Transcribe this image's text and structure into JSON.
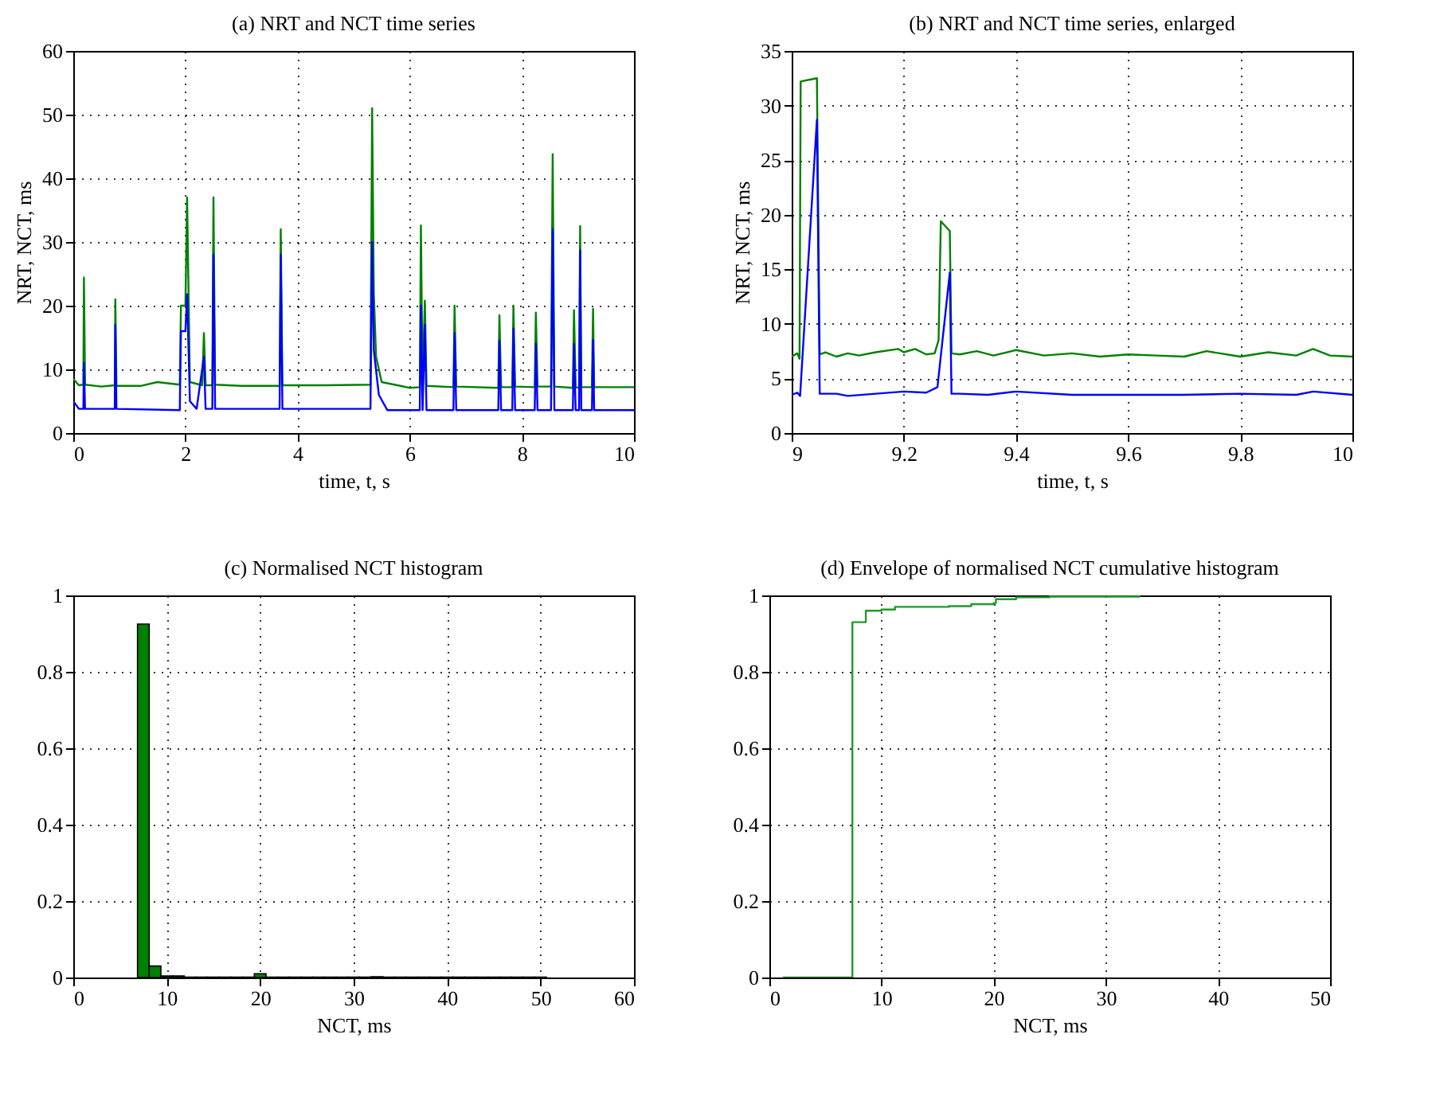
{
  "chart_data": [
    {
      "type": "line",
      "title": "(a)  NRT and NCT time series",
      "xlabel": "time, t, s",
      "ylabel": "NRT, NCT, ms",
      "xlim": [
        0,
        10
      ],
      "xticks": [
        0,
        2,
        4,
        6,
        8,
        10
      ],
      "ylim": [
        0,
        60
      ],
      "yticks": [
        0,
        10,
        20,
        30,
        40,
        50,
        60
      ],
      "grid": true,
      "series": [
        {
          "color": "#008000",
          "x": [
            0,
            0.1,
            0.18,
            0.19,
            0.21,
            0.5,
            0.74,
            0.75,
            0.77,
            1.2,
            1.5,
            1.9,
            1.92,
            2.0,
            2.03,
            2.08,
            2.3,
            2.33,
            2.36,
            2.48,
            2.5,
            2.53,
            3.0,
            3.68,
            3.7,
            3.73,
            4.5,
            5.3,
            5.33,
            5.36,
            5.4,
            5.5,
            6.0,
            6.18,
            6.2,
            6.23,
            6.27,
            6.3,
            6.78,
            6.8,
            6.83,
            7.58,
            7.6,
            7.63,
            7.83,
            7.85,
            7.88,
            8.23,
            8.25,
            8.28,
            8.52,
            8.55,
            8.58,
            8.91,
            8.93,
            8.96,
            9.02,
            9.04,
            9.06,
            9.25,
            9.27,
            9.29,
            10
          ],
          "values": [
            8.5,
            7.5,
            7.6,
            24.4,
            7.6,
            7.3,
            7.5,
            21,
            7.4,
            7.4,
            8,
            7.6,
            20,
            20,
            37,
            8,
            7.5,
            15.7,
            7.5,
            7.5,
            37,
            7.6,
            7.4,
            7.4,
            32,
            7.5,
            7.5,
            7.6,
            51,
            22,
            12,
            8,
            7.1,
            7.2,
            32.6,
            7.5,
            20.8,
            7.4,
            7.2,
            20,
            7.3,
            7.1,
            18.5,
            7.2,
            7.2,
            20,
            7.3,
            7.2,
            18.9,
            7.3,
            7.3,
            43.8,
            7.3,
            7.1,
            19.3,
            7.2,
            7.1,
            32.5,
            7.2,
            7.2,
            19.5,
            7.2,
            7.2
          ]
        },
        {
          "color": "#0000ff",
          "x": [
            0,
            0.1,
            0.18,
            0.19,
            0.21,
            0.74,
            0.75,
            0.77,
            1.9,
            1.92,
            2.0,
            2.03,
            2.08,
            2.2,
            2.33,
            2.36,
            2.48,
            2.5,
            2.53,
            3.68,
            3.7,
            3.73,
            5.3,
            5.33,
            5.36,
            5.45,
            5.6,
            6.18,
            6.2,
            6.23,
            6.27,
            6.3,
            6.78,
            6.8,
            6.83,
            7.58,
            7.6,
            7.63,
            7.83,
            7.85,
            7.88,
            8.23,
            8.25,
            8.28,
            8.52,
            8.55,
            8.58,
            8.91,
            8.93,
            8.96,
            9.02,
            9.04,
            9.06,
            9.25,
            9.27,
            9.29,
            10
          ],
          "values": [
            5,
            3.8,
            3.8,
            11,
            3.8,
            3.8,
            17,
            3.8,
            3.6,
            16,
            16,
            21.8,
            5,
            3.8,
            12,
            3.8,
            3.8,
            28,
            3.8,
            3.8,
            28,
            3.8,
            3.8,
            30,
            13,
            6,
            3.6,
            3.6,
            20,
            3.6,
            17,
            3.6,
            3.6,
            15.7,
            3.6,
            3.6,
            14.5,
            3.6,
            3.6,
            16.4,
            3.6,
            3.6,
            14,
            3.6,
            3.6,
            32,
            3.6,
            3.6,
            14,
            3.6,
            3.6,
            28.7,
            3.6,
            3.6,
            14.6,
            3.6,
            3.6
          ]
        }
      ]
    },
    {
      "type": "line",
      "title": "(b)  NRT and NCT time series, enlarged",
      "xlabel": "time, t, s",
      "ylabel": "NRT, NCT, ms",
      "xlim": [
        9,
        10
      ],
      "xticks": [
        9,
        9.2,
        9.4,
        9.6,
        9.8,
        10
      ],
      "ylim": [
        0,
        35
      ],
      "yticks": [
        0,
        5,
        10,
        15,
        20,
        25,
        30,
        35
      ],
      "grid": true,
      "series": [
        {
          "color": "#008000",
          "x": [
            9,
            9.01,
            9.014,
            9.016,
            9.045,
            9.05,
            9.06,
            9.08,
            9.1,
            9.12,
            9.15,
            9.19,
            9.2,
            9.22,
            9.24,
            9.255,
            9.262,
            9.266,
            9.282,
            9.285,
            9.3,
            9.33,
            9.36,
            9.4,
            9.45,
            9.5,
            9.55,
            9.6,
            9.65,
            9.7,
            9.74,
            9.8,
            9.85,
            9.9,
            9.93,
            9.96,
            10
          ],
          "values": [
            7,
            7.3,
            6.8,
            32.2,
            32.5,
            7.2,
            7.4,
            7,
            7.3,
            7.1,
            7.4,
            7.7,
            7.4,
            7.7,
            7.2,
            7.3,
            8.5,
            19.4,
            18.5,
            7.3,
            7.2,
            7.5,
            7.1,
            7.6,
            7.1,
            7.3,
            7,
            7.2,
            7.1,
            7,
            7.5,
            7,
            7.4,
            7.1,
            7.7,
            7.1,
            7
          ]
        },
        {
          "color": "#0000ff",
          "x": [
            9,
            9.01,
            9.015,
            9.045,
            9.05,
            9.08,
            9.1,
            9.15,
            9.2,
            9.24,
            9.26,
            9.282,
            9.285,
            9.3,
            9.35,
            9.4,
            9.5,
            9.6,
            9.7,
            9.8,
            9.9,
            9.93,
            10
          ],
          "values": [
            3.5,
            3.7,
            3.4,
            28.7,
            3.6,
            3.6,
            3.4,
            3.6,
            3.8,
            3.7,
            4.2,
            14.7,
            3.6,
            3.6,
            3.5,
            3.8,
            3.5,
            3.5,
            3.5,
            3.6,
            3.5,
            3.8,
            3.5
          ]
        }
      ]
    },
    {
      "type": "histogram",
      "title": "(c)  Normalised NCT histogram",
      "xlabel": "NCT, ms",
      "xlim": [
        0,
        60
      ],
      "xticks": [
        0,
        10,
        20,
        30,
        40,
        50,
        60
      ],
      "ylim": [
        0,
        1
      ],
      "yticks": [
        0,
        0.2,
        0.4,
        0.6,
        0.8,
        1
      ],
      "grid": true,
      "color": "#008000",
      "bins": [
        6.875,
        8.125,
        9.375,
        10.625,
        11.875,
        13.125,
        14.375,
        15.625,
        16.875,
        18.125,
        19.375,
        20.625,
        21.875,
        23.125,
        24.375,
        25.625,
        26.875,
        28.125,
        29.375,
        30.625,
        31.875,
        33.125,
        34.375,
        35.625,
        36.875,
        38.125,
        39.375,
        40.625,
        41.875,
        43.125,
        44.375,
        45.625,
        46.875,
        48.125,
        49.375,
        50.625
      ],
      "values": [
        0.925,
        0.03,
        0.004,
        0.004,
        0.001,
        0.001,
        0.001,
        0.001,
        0.001,
        0.001,
        0.01,
        0.001,
        0.001,
        0.001,
        0.001,
        0.001,
        0.001,
        0.001,
        0.001,
        0.001,
        0.002,
        0.001,
        0.001,
        0.001,
        0.001,
        0.001,
        0.001,
        0.001,
        0.001,
        0.001,
        0.001,
        0.001,
        0.001,
        0.001,
        0.001
      ]
    },
    {
      "type": "step",
      "title": "(d)  Envelope of normalised NCT cumulative histogram",
      "xlabel": "NCT, ms",
      "xlim": [
        0,
        50
      ],
      "xticks": [
        0,
        10,
        20,
        30,
        40,
        50
      ],
      "ylim": [
        0,
        1
      ],
      "yticks": [
        0,
        0.2,
        0.4,
        0.6,
        0.8,
        1
      ],
      "grid": true,
      "series": [
        {
          "color": "#22992a",
          "x": [
            1.2,
            7.4,
            8.6,
            10,
            11.2,
            16,
            18,
            20,
            20.2,
            22,
            25,
            33
          ],
          "values": [
            0,
            0.93,
            0.96,
            0.963,
            0.97,
            0.972,
            0.977,
            0.98,
            0.99,
            0.995,
            0.997,
            1
          ]
        }
      ]
    }
  ]
}
